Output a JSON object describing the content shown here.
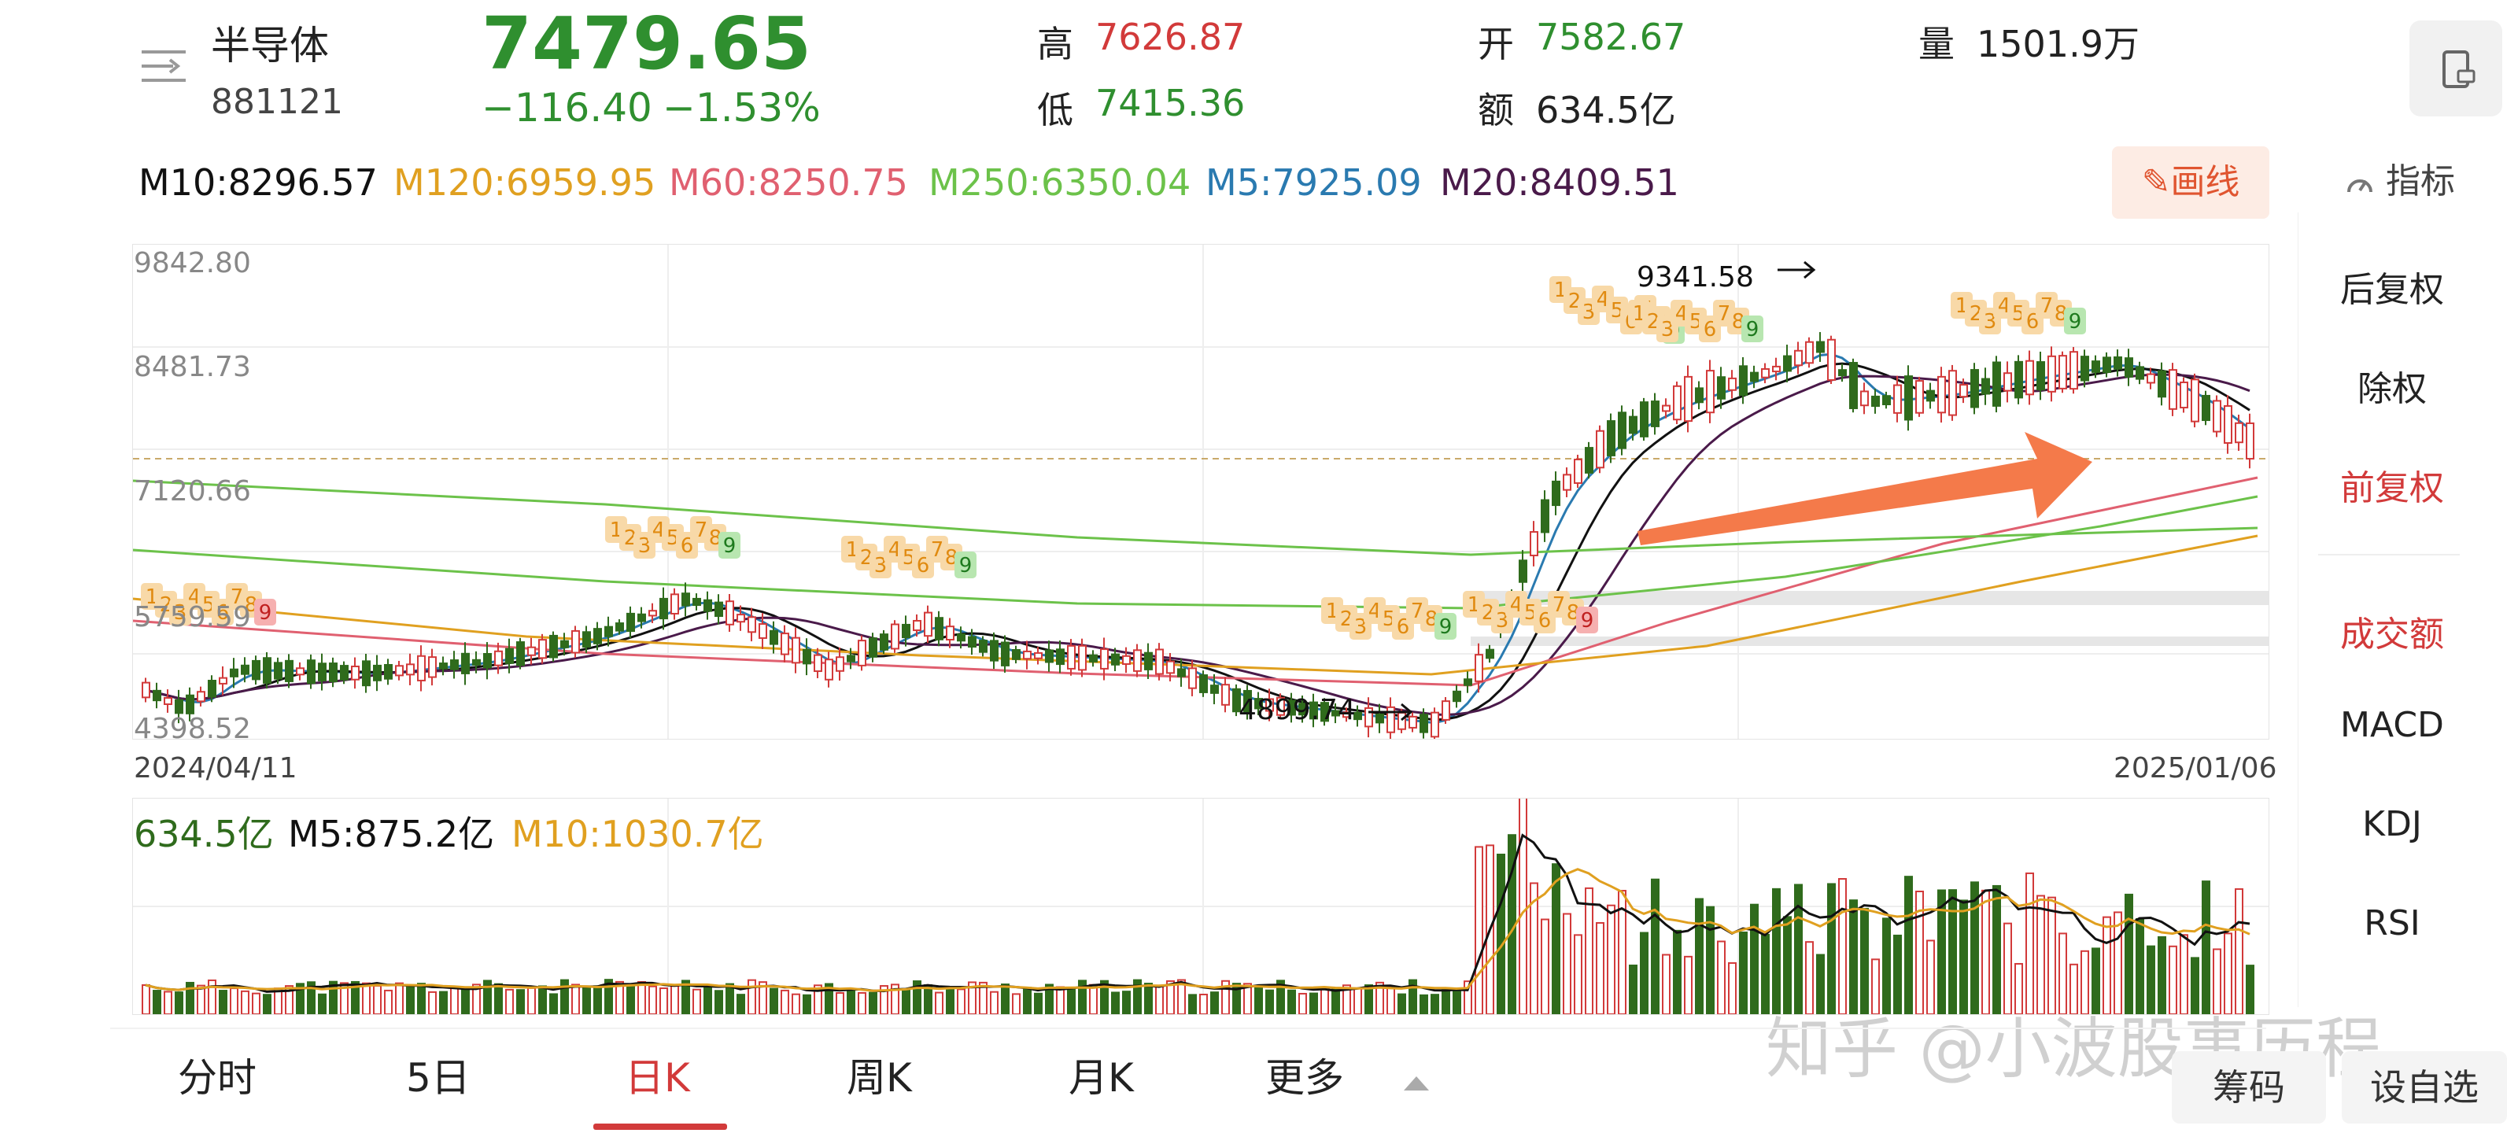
{
  "header": {
    "name": "半导体",
    "code": "881121",
    "price": "7479.65",
    "change": "−116.40",
    "change_pct": "−1.53%",
    "high_label": "高",
    "high": "7626.87",
    "low_label": "低",
    "low": "7415.36",
    "open_label": "开",
    "open": "7582.67",
    "amount_label": "额",
    "amount": "634.5亿",
    "volume_label": "量",
    "volume": "1501.9万"
  },
  "indicator_label": "指标",
  "draw_button": "画线",
  "ma_legend": {
    "m10": "M10:8296.57",
    "m120": "M120:6959.95",
    "m60": "M60:8250.75",
    "m250": "M250:6350.04",
    "m5": "M5:7925.09",
    "m20": "M20:8409.51"
  },
  "colors": {
    "up": "#d23a3a",
    "down": "#2f6b1c",
    "m5": "#2a7ab0",
    "m10": "#111111",
    "m20": "#4a1a4a",
    "m60": "#e06070",
    "m120": "#e0a020",
    "m250": "#6cc24a",
    "arrow": "#f47a4a"
  },
  "price_axis": {
    "y1": "9842.80",
    "y2": "8481.73",
    "y3": "7120.66",
    "y4": "5759.59",
    "y5": "4398.52"
  },
  "date_start": "2024/04/11",
  "date_end": "2025/01/06",
  "annotations": {
    "high": "9341.58",
    "low": "4899.74"
  },
  "volume_legend": {
    "current": "634.5亿",
    "m5": "M5:875.2亿",
    "m10": "M10:1030.7亿"
  },
  "right_menu": {
    "back_adjust": "后复权",
    "ex_right": "除权",
    "forward_adjust": "前复权",
    "turnover": "成交额",
    "macd": "MACD",
    "kdj": "KDJ",
    "rsi": "RSI"
  },
  "tabs": {
    "fenshi": "分时",
    "five_day": "5日",
    "day_k": "日K",
    "week_k": "周K",
    "month_k": "月K",
    "more": "更多"
  },
  "bottom_buttons": {
    "chips": "筹码",
    "add_watch": "设自选"
  },
  "watermark": "知乎 @小波股事历程",
  "td9_markers": [
    {
      "digits": "456",
      "end": "9"
    },
    {
      "digits": "123456",
      "end": "7",
      "extra": "8",
      "final": "9"
    },
    {
      "digits": "123456",
      "end": "7",
      "extra": "8",
      "final": "9"
    },
    {
      "digits": "123456",
      "end": "7",
      "extra": "8",
      "final": "9"
    },
    {
      "digits": "123",
      "end": "4",
      "extra": "5",
      "final": "9"
    }
  ],
  "td9_digits": [
    "1",
    "2",
    "3",
    "4",
    "5",
    "6",
    "7",
    "8",
    "9"
  ]
}
